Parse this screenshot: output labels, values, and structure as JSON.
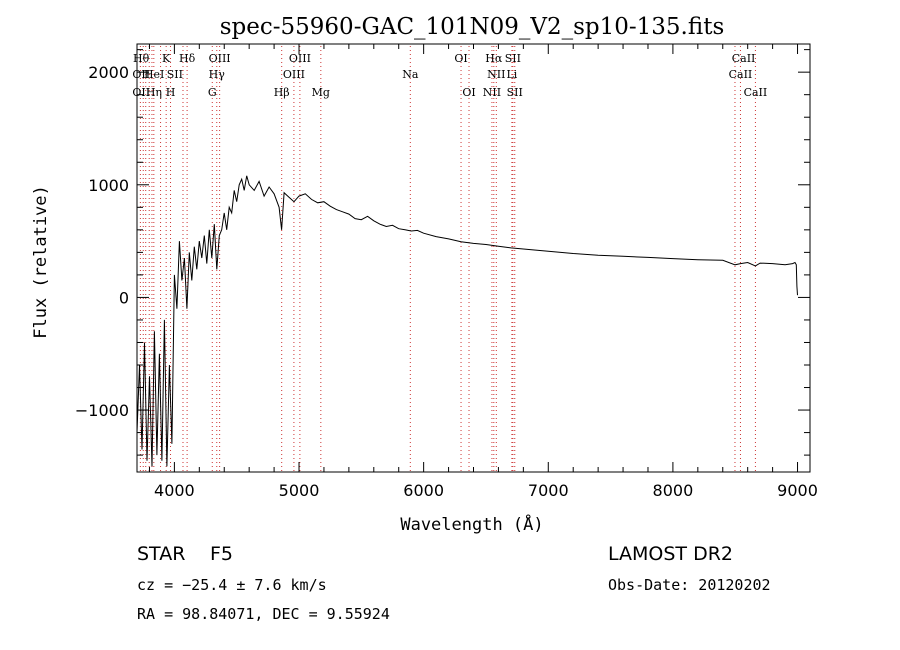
{
  "chart_data": {
    "type": "line",
    "title": "spec-55960-GAC_101N09_V2_sp10-135.fits",
    "xlabel": "Wavelength (Å)",
    "ylabel": "Flux (relative)",
    "xlim": [
      3700,
      9100
    ],
    "ylim": [
      -1550,
      2250
    ],
    "x_ticks": [
      4000,
      5000,
      6000,
      7000,
      8000,
      9000
    ],
    "x_tick_labels": [
      "4000",
      "5000",
      "6000",
      "7000",
      "8000",
      "9000"
    ],
    "y_ticks": [
      -1000,
      0,
      1000,
      2000
    ],
    "y_tick_labels": [
      "−1000",
      "0",
      "1000",
      "2000"
    ],
    "line_color": "#000000",
    "marker_color": "#cc3333",
    "spectrum": {
      "x": [
        3700,
        3720,
        3740,
        3760,
        3780,
        3800,
        3820,
        3840,
        3860,
        3880,
        3900,
        3920,
        3940,
        3960,
        3980,
        4000,
        4020,
        4040,
        4060,
        4080,
        4100,
        4120,
        4140,
        4160,
        4180,
        4200,
        4220,
        4240,
        4260,
        4280,
        4300,
        4320,
        4340,
        4360,
        4380,
        4400,
        4420,
        4440,
        4460,
        4480,
        4500,
        4520,
        4540,
        4560,
        4580,
        4600,
        4640,
        4680,
        4720,
        4760,
        4800,
        4840,
        4860,
        4880,
        4920,
        4960,
        5000,
        5050,
        5100,
        5150,
        5200,
        5250,
        5300,
        5350,
        5400,
        5450,
        5500,
        5550,
        5600,
        5650,
        5700,
        5750,
        5800,
        5850,
        5900,
        5950,
        6000,
        6100,
        6200,
        6300,
        6400,
        6500,
        6600,
        6700,
        6800,
        6900,
        7000,
        7200,
        7400,
        7600,
        7800,
        8000,
        8200,
        8400,
        8498,
        8542,
        8600,
        8662,
        8700,
        8800,
        8900,
        8960,
        8980,
        8990,
        8995,
        9000
      ],
      "y": [
        -1200,
        -600,
        -1350,
        -400,
        -1450,
        -700,
        -1500,
        -300,
        -1400,
        -500,
        -1450,
        -200,
        -1500,
        -600,
        -1300,
        200,
        -100,
        500,
        150,
        350,
        -100,
        400,
        150,
        450,
        250,
        500,
        350,
        550,
        300,
        600,
        350,
        650,
        250,
        550,
        600,
        750,
        600,
        800,
        750,
        950,
        850,
        1000,
        1050,
        950,
        1080,
        1000,
        950,
        1030,
        900,
        980,
        920,
        800,
        600,
        930,
        890,
        850,
        900,
        920,
        870,
        840,
        850,
        810,
        780,
        760,
        740,
        700,
        690,
        720,
        680,
        650,
        630,
        640,
        610,
        600,
        590,
        595,
        570,
        540,
        520,
        495,
        480,
        470,
        455,
        440,
        430,
        420,
        410,
        390,
        375,
        365,
        355,
        345,
        335,
        330,
        290,
        300,
        310,
        280,
        305,
        300,
        290,
        300,
        310,
        290,
        100,
        20
      ]
    },
    "line_markers": [
      {
        "label": "Hθ",
        "x": 3798,
        "row": 1,
        "ha": "end"
      },
      {
        "label": "OII",
        "x": 3727,
        "row": 2,
        "ha": "start"
      },
      {
        "label": "HeI",
        "x": 3820,
        "row": 2,
        "ha": "start"
      },
      {
        "label": "OII",
        "x": 3727,
        "row": 3,
        "ha": "start"
      },
      {
        "label": "Hη",
        "x": 3835,
        "row": 3,
        "ha": "start"
      },
      {
        "label": "K",
        "x": 3934,
        "row": 1,
        "ha": "middle"
      },
      {
        "label": "SII",
        "x": 4069,
        "row": 2,
        "ha": "end"
      },
      {
        "label": "H",
        "x": 3969,
        "row": 3,
        "ha": "middle"
      },
      {
        "label": "Hδ",
        "x": 4102,
        "row": 1,
        "ha": "middle"
      },
      {
        "label": "OIII",
        "x": 4363,
        "row": 1,
        "ha": "middle"
      },
      {
        "label": "Hγ",
        "x": 4340,
        "row": 2,
        "ha": "middle"
      },
      {
        "label": "G",
        "x": 4304,
        "row": 3,
        "ha": "middle"
      },
      {
        "label": "OIII",
        "x": 5007,
        "row": 1,
        "ha": "middle"
      },
      {
        "label": "OIII",
        "x": 4959,
        "row": 2,
        "ha": "middle"
      },
      {
        "label": "Hβ",
        "x": 4861,
        "row": 3,
        "ha": "middle"
      },
      {
        "label": "Mg",
        "x": 5175,
        "row": 3,
        "ha": "middle"
      },
      {
        "label": "Na",
        "x": 5893,
        "row": 2,
        "ha": "middle"
      },
      {
        "label": "OI",
        "x": 6300,
        "row": 1,
        "ha": "middle"
      },
      {
        "label": "OI",
        "x": 6364,
        "row": 3,
        "ha": "middle"
      },
      {
        "label": "Hα",
        "x": 6563,
        "row": 1,
        "ha": "middle"
      },
      {
        "label": "SII",
        "x": 6716,
        "row": 1,
        "ha": "middle"
      },
      {
        "label": "NII",
        "x": 6583,
        "row": 2,
        "ha": "middle"
      },
      {
        "label": "Li",
        "x": 6708,
        "row": 2,
        "ha": "middle"
      },
      {
        "label": "NII",
        "x": 6548,
        "row": 3,
        "ha": "middle"
      },
      {
        "label": "SII",
        "x": 6731,
        "row": 3,
        "ha": "middle"
      },
      {
        "label": "CaII",
        "x": 8662,
        "row": 1,
        "ha": "end"
      },
      {
        "label": "CaII",
        "x": 8542,
        "row": 2,
        "ha": "middle"
      },
      {
        "label": "CaII",
        "x": 8662,
        "row": 3,
        "ha": "middle"
      }
    ],
    "marker_lines_x": [
      3727,
      3750,
      3770,
      3798,
      3820,
      3835,
      3889,
      3934,
      3969,
      4069,
      4102,
      4304,
      4340,
      4363,
      4861,
      4959,
      5007,
      5175,
      5893,
      6300,
      6364,
      6548,
      6563,
      6583,
      6708,
      6716,
      6731,
      8498,
      8542,
      8662
    ]
  },
  "info": {
    "object_class": "STAR",
    "subclass": "F5",
    "survey": "LAMOST DR2",
    "cz": "cz = −25.4 ± 7.6 km/s",
    "obs_date": "Obs-Date: 20120202",
    "radec": "RA =  98.84071, DEC =   9.55924"
  }
}
